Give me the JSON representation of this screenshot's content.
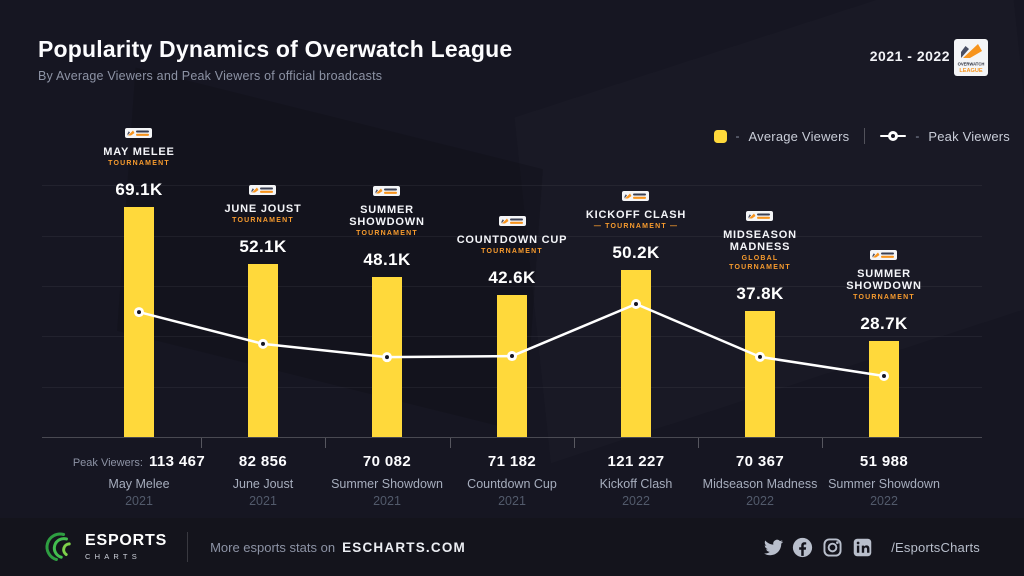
{
  "header": {
    "title": "Popularity Dynamics of Overwatch League",
    "subtitle": "By Average Viewers and Peak Viewers of official broadcasts",
    "period": "2021 - 2022",
    "owl_logo_line1": "OVERWATCH",
    "owl_logo_line2": "LEAGUE"
  },
  "legend": {
    "dash": "-",
    "average_label": "Average Viewers",
    "peak_label": "Peak Viewers"
  },
  "chart_data": {
    "type": "bar+line",
    "categories": [
      "May Melee",
      "June Joust",
      "Summer Showdown",
      "Countdown Cup",
      "Kickoff Clash",
      "Midseason Madness",
      "Summer Showdown"
    ],
    "years": [
      "2021",
      "2021",
      "2021",
      "2021",
      "2022",
      "2022",
      "2022"
    ],
    "series": [
      {
        "name": "Average Viewers",
        "type": "bar",
        "color": "#FFD93B",
        "values": [
          69100,
          52100,
          48100,
          42600,
          50200,
          37800,
          28700
        ],
        "labels": [
          "69.1K",
          "52.1K",
          "48.1K",
          "42.6K",
          "50.2K",
          "37.8K",
          "28.7K"
        ]
      },
      {
        "name": "Peak Viewers",
        "type": "line",
        "color": "#FFFFFF",
        "values": [
          113467,
          82856,
          70082,
          71182,
          121227,
          70367,
          51988
        ],
        "labels": [
          "113 467",
          "82 856",
          "70 082",
          "71 182",
          "121 227",
          "70 367",
          "51 988"
        ]
      }
    ],
    "peak_row_prefix": "Peak Viewers:",
    "tournament_blocks": [
      {
        "title_lines": [
          "MAY MELEE"
        ],
        "sub_lines": [
          "TOURNAMENT"
        ]
      },
      {
        "title_lines": [
          "JUNE JOUST"
        ],
        "sub_lines": [
          "TOURNAMENT"
        ]
      },
      {
        "title_lines": [
          "SUMMER",
          "SHOWDOWN"
        ],
        "sub_lines": [
          "TOURNAMENT"
        ]
      },
      {
        "title_lines": [
          "COUNTDOWN CUP"
        ],
        "sub_lines": [
          "TOURNAMENT"
        ]
      },
      {
        "title_lines": [
          "KICKOFF CLASH"
        ],
        "sub_lines": [
          "—  TOURNAMENT  —"
        ]
      },
      {
        "title_lines": [
          "MIDSEASON",
          "MADNESS"
        ],
        "sub_lines": [
          "GLOBAL",
          "TOURNAMENT"
        ]
      },
      {
        "title_lines": [
          "SUMMER",
          "SHOWDOWN"
        ],
        "sub_lines": [
          "TOURNAMENT"
        ]
      }
    ],
    "grid": true,
    "legend_position": "top-right"
  },
  "footer": {
    "brand_name": "ESPORTS",
    "brand_sub": "CHARTS",
    "text": "More esports stats on",
    "site": "ESCHARTS.COM",
    "handle": "/EsportsCharts",
    "social_icons": [
      "twitter-icon",
      "facebook-icon",
      "instagram-icon",
      "linkedin-icon"
    ]
  },
  "colors": {
    "background": "#161622",
    "footer_background": "#14141c",
    "bar": "#FFD93B",
    "accent_orange": "#f79b2e",
    "line": "#FFFFFF"
  }
}
